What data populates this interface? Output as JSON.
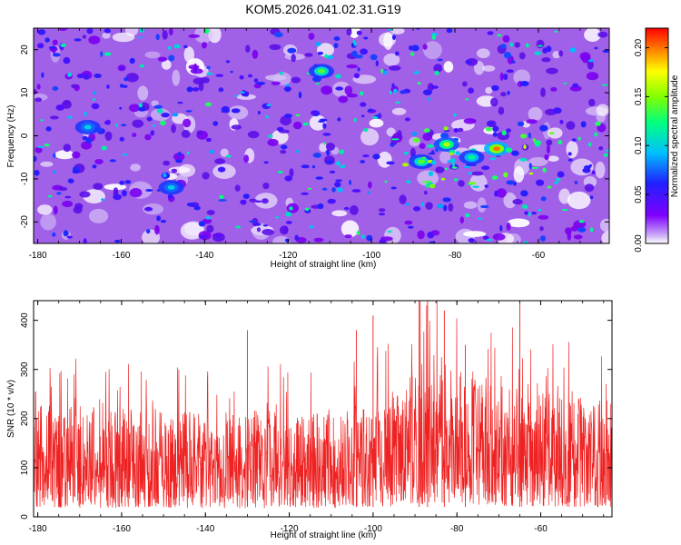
{
  "title": "KOM5.2026.041.02.31.G19",
  "chart_data": [
    {
      "type": "heatmap",
      "xlabel": "Height of straight line (km)",
      "ylabel": "Frequency (Hz)",
      "xlim": [
        -181,
        -43
      ],
      "ylim": [
        -25,
        25
      ],
      "xticks": [
        -180,
        -160,
        -140,
        -120,
        -100,
        -80,
        -60
      ],
      "xtick_labels": [
        "-180",
        "-160",
        "-140",
        "-120",
        "-100",
        "-80",
        "-60"
      ],
      "yticks": [
        -20,
        -10,
        0,
        10,
        20
      ],
      "ytick_labels": [
        "-20",
        "-10",
        "0",
        "10",
        "20"
      ],
      "colorbar": {
        "label": "Normalized spectral amplitude",
        "range": [
          0.0,
          0.22
        ],
        "ticks": [
          0.0,
          0.05,
          0.1,
          0.15,
          0.2
        ],
        "tick_labels": [
          "0.00",
          "0.05",
          "0.10",
          "0.15",
          "0.20"
        ],
        "colors": [
          "#ffffff",
          "#c9a6f6",
          "#8000ff",
          "#2020ff",
          "#00c0ff",
          "#00ff80",
          "#80ff00",
          "#ffff00",
          "#ff8000",
          "#ff0000"
        ]
      },
      "hotspots": [
        {
          "x": -82,
          "y": -2,
          "amplitude": 0.16
        },
        {
          "x": -70,
          "y": -3,
          "amplitude": 0.2
        },
        {
          "x": -88,
          "y": -6,
          "amplitude": 0.14
        },
        {
          "x": -112,
          "y": 15,
          "amplitude": 0.14
        },
        {
          "x": -76,
          "y": -5,
          "amplitude": 0.12
        },
        {
          "x": -168,
          "y": 2,
          "amplitude": 0.1
        },
        {
          "x": -148,
          "y": -12,
          "amplitude": 0.1
        }
      ]
    },
    {
      "type": "line",
      "xlabel": "Height of straight line (km)",
      "ylabel": "SNR (10 * v/v)",
      "xlim": [
        -181,
        -43
      ],
      "ylim": [
        0,
        440
      ],
      "xticks": [
        -180,
        -160,
        -140,
        -120,
        -100,
        -80,
        -60
      ],
      "xtick_labels": [
        "-180",
        "-160",
        "-140",
        "-120",
        "-100",
        "-80",
        "-60"
      ],
      "yticks": [
        0,
        100,
        200,
        300,
        400
      ],
      "ytick_labels": [
        "0",
        "100",
        "200",
        "300",
        "400"
      ],
      "line_color": "#ee2222",
      "profile": [
        {
          "x": -181,
          "y": 125
        },
        {
          "x": -160,
          "y": 120
        },
        {
          "x": -140,
          "y": 118
        },
        {
          "x": -120,
          "y": 118
        },
        {
          "x": -105,
          "y": 120
        },
        {
          "x": -95,
          "y": 145
        },
        {
          "x": -85,
          "y": 180
        },
        {
          "x": -75,
          "y": 160
        },
        {
          "x": -65,
          "y": 140
        },
        {
          "x": -55,
          "y": 135
        },
        {
          "x": -43,
          "y": 130
        }
      ],
      "peaks": [
        {
          "x": -89,
          "y": 440
        },
        {
          "x": -87,
          "y": 440
        },
        {
          "x": -65,
          "y": 440
        },
        {
          "x": -100,
          "y": 410
        },
        {
          "x": -83,
          "y": 420
        },
        {
          "x": -104,
          "y": 380
        },
        {
          "x": -78,
          "y": 350
        },
        {
          "x": -130,
          "y": 380
        }
      ]
    }
  ]
}
